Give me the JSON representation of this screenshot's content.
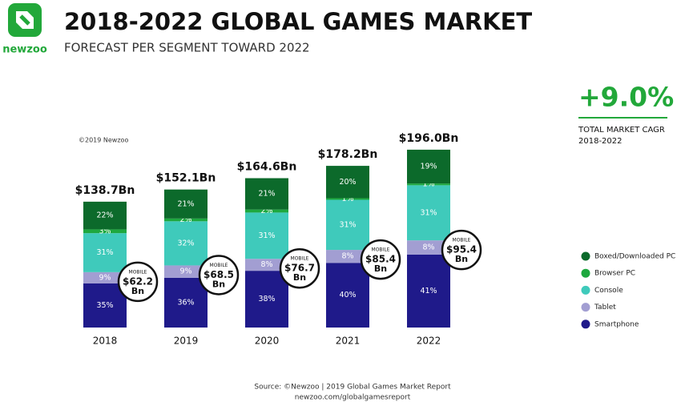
{
  "chart_data": {
    "type": "stacked-bar",
    "logo": "newzoo",
    "title": "2018-2022 GLOBAL GAMES MARKET",
    "subtitle": "FORECAST PER SEGMENT TOWARD 2022",
    "copyright": "©2019 Newzoo",
    "cagr": {
      "value": 9.0,
      "label": "+9.0%",
      "caption": "TOTAL MARKET CAGR",
      "period": "2018-2022"
    },
    "categories": [
      "2018",
      "2019",
      "2020",
      "2021",
      "2022"
    ],
    "totals": {
      "values": [
        138.7,
        152.1,
        164.6,
        178.2,
        196.0
      ],
      "value_labels": [
        "$138.7Bn",
        "$152.1Bn",
        "$164.6Bn",
        "$178.2Bn",
        "$196.0Bn"
      ]
    },
    "series": [
      {
        "name": "Smartphone",
        "color": "#1f1a8a",
        "values": [
          35,
          36,
          38,
          40,
          41
        ],
        "value_labels": [
          "35%",
          "36%",
          "38%",
          "40%",
          "41%"
        ]
      },
      {
        "name": "Tablet",
        "color": "#a29ed2",
        "values": [
          9,
          9,
          8,
          8,
          8
        ],
        "value_labels": [
          "9%",
          "9%",
          "8%",
          "8%",
          "8%"
        ]
      },
      {
        "name": "Console",
        "color": "#3fcabb",
        "values": [
          31,
          32,
          31,
          31,
          31
        ],
        "value_labels": [
          "31%",
          "32%",
          "31%",
          "31%",
          "31%"
        ]
      },
      {
        "name": "Browser PC",
        "color": "#1ea83f",
        "values": [
          3,
          2,
          2,
          1,
          1
        ],
        "value_labels": [
          "3%",
          "2%",
          "2%",
          "1%",
          "1%"
        ]
      },
      {
        "name": "Boxed/Downloaded PC",
        "color": "#0c6a2b",
        "values": [
          22,
          21,
          21,
          20,
          19
        ],
        "value_labels": [
          "22%",
          "21%",
          "21%",
          "20%",
          "19%"
        ]
      }
    ],
    "mobile": {
      "label": "MOBILE",
      "unit": "Bn",
      "values": [
        62.2,
        68.5,
        76.7,
        85.4,
        95.4
      ],
      "value_labels": [
        "$62.2",
        "$68.5",
        "$76.7",
        "$85.4",
        "$95.4"
      ]
    },
    "source": "Source: ©Newzoo | 2019 Global Games Market Report",
    "url": "newzoo.com/globalgamesreport"
  }
}
